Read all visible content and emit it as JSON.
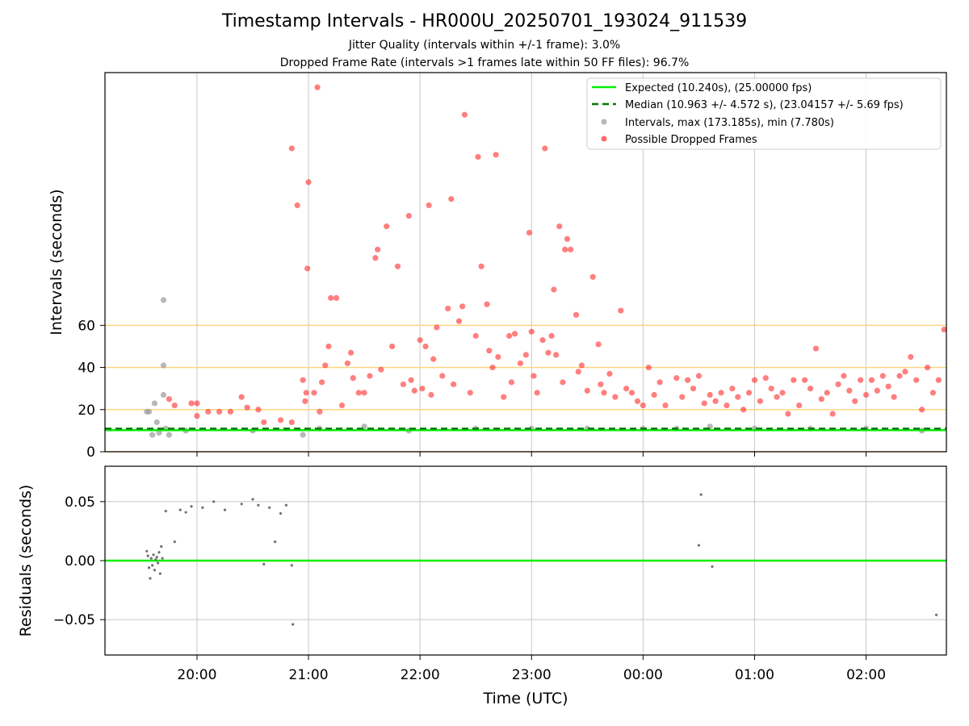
{
  "header": {
    "title": "Timestamp Intervals - HR000U_20250701_193024_911539",
    "subtitle_jitter": "Jitter Quality (intervals within +/-1 frame): 3.0%",
    "subtitle_dropped": "Dropped Frame Rate (intervals >1 frames late within 50 FF files): 96.7%"
  },
  "colors": {
    "expected": "#00ee00",
    "median": "#007700",
    "intervals": "#a0a0a0",
    "dropped": "#ff2a2a",
    "threshold": "#ffd27a",
    "residual": "#707070",
    "grid": "#c8c8c8"
  },
  "chart_data": [
    {
      "type": "scatter",
      "title": "",
      "xlabel": "",
      "ylabel": "Intervals (seconds)",
      "x_unit": "hours relative to 2025-07-01 00:00 UTC",
      "xlim": [
        19.175,
        26.72
      ],
      "ylim": [
        0,
        180
      ],
      "x_ticks": [
        20,
        21,
        22,
        23,
        24,
        25,
        26
      ],
      "x_tick_labels": [
        "20:00",
        "21:00",
        "22:00",
        "23:00",
        "00:00",
        "01:00",
        "02:00"
      ],
      "y_ticks": [
        0,
        20,
        40,
        60
      ],
      "y_tick_labels": [
        "0",
        "20",
        "40",
        "60"
      ],
      "grid": true,
      "threshold_lines": [
        0,
        20,
        40,
        60
      ],
      "expected_line": 10.24,
      "median_line": 10.963,
      "legend_position": "top-right",
      "legend": [
        {
          "label": "Expected (10.240s), (25.00000 fps)",
          "style": "solid-line",
          "color": "#00ee00"
        },
        {
          "label": "Median (10.963 +/- 4.572 s), (23.04157 +/- 5.69 fps)",
          "style": "dashed-line",
          "color": "#007700"
        },
        {
          "label": "Intervals, max (173.185s), min (7.780s)",
          "style": "marker",
          "color": "#a0a0a0"
        },
        {
          "label": "Possible Dropped Frames",
          "style": "marker",
          "color": "#ff2a2a"
        }
      ],
      "series": [
        {
          "name": "Intervals, max (173.185s), min (7.780s)",
          "points": [
            [
              19.55,
              19
            ],
            [
              19.57,
              19
            ],
            [
              19.6,
              8
            ],
            [
              19.62,
              23
            ],
            [
              19.64,
              14
            ],
            [
              19.66,
              9
            ],
            [
              19.7,
              72
            ],
            [
              19.7,
              41
            ],
            [
              19.7,
              27
            ],
            [
              19.72,
              11
            ],
            [
              19.75,
              8
            ],
            [
              19.9,
              10
            ],
            [
              20.5,
              10
            ],
            [
              20.95,
              8
            ],
            [
              21.1,
              11
            ],
            [
              21.5,
              12
            ],
            [
              21.9,
              10
            ],
            [
              22.5,
              11
            ],
            [
              23.0,
              11
            ],
            [
              23.5,
              11
            ],
            [
              24.0,
              11
            ],
            [
              24.3,
              11
            ],
            [
              24.6,
              12
            ],
            [
              25.0,
              11
            ],
            [
              25.5,
              11
            ],
            [
              26.0,
              11
            ],
            [
              26.5,
              10
            ]
          ]
        },
        {
          "name": "Possible Dropped Frames",
          "points": [
            [
              19.75,
              25
            ],
            [
              19.8,
              22
            ],
            [
              19.95,
              23
            ],
            [
              20.0,
              23
            ],
            [
              20.0,
              17
            ],
            [
              20.1,
              19
            ],
            [
              20.2,
              19
            ],
            [
              20.3,
              19
            ],
            [
              20.4,
              26
            ],
            [
              20.45,
              21
            ],
            [
              20.55,
              20
            ],
            [
              20.6,
              14
            ],
            [
              20.75,
              15
            ],
            [
              20.85,
              14
            ],
            [
              20.85,
              144
            ],
            [
              20.9,
              117
            ],
            [
              20.95,
              34
            ],
            [
              20.97,
              24
            ],
            [
              20.98,
              28
            ],
            [
              20.99,
              87
            ],
            [
              21.0,
              128
            ],
            [
              21.05,
              28
            ],
            [
              21.08,
              173
            ],
            [
              21.1,
              19
            ],
            [
              21.12,
              33
            ],
            [
              21.15,
              41
            ],
            [
              21.18,
              50
            ],
            [
              21.2,
              73
            ],
            [
              21.25,
              73
            ],
            [
              21.3,
              22
            ],
            [
              21.35,
              42
            ],
            [
              21.38,
              47
            ],
            [
              21.4,
              35
            ],
            [
              21.45,
              28
            ],
            [
              21.5,
              28
            ],
            [
              21.55,
              36
            ],
            [
              21.6,
              92
            ],
            [
              21.62,
              96
            ],
            [
              21.65,
              39
            ],
            [
              21.7,
              107
            ],
            [
              21.75,
              50
            ],
            [
              21.8,
              88
            ],
            [
              21.85,
              32
            ],
            [
              21.9,
              112
            ],
            [
              21.92,
              34
            ],
            [
              21.95,
              29
            ],
            [
              22.0,
              53
            ],
            [
              22.02,
              30
            ],
            [
              22.05,
              50
            ],
            [
              22.08,
              117
            ],
            [
              22.1,
              27
            ],
            [
              22.12,
              44
            ],
            [
              22.15,
              59
            ],
            [
              22.2,
              36
            ],
            [
              22.25,
              68
            ],
            [
              22.28,
              120
            ],
            [
              22.3,
              32
            ],
            [
              22.35,
              62
            ],
            [
              22.38,
              69
            ],
            [
              22.4,
              160
            ],
            [
              22.45,
              28
            ],
            [
              22.5,
              55
            ],
            [
              22.52,
              140
            ],
            [
              22.55,
              88
            ],
            [
              22.6,
              70
            ],
            [
              22.62,
              48
            ],
            [
              22.65,
              40
            ],
            [
              22.68,
              141
            ],
            [
              22.7,
              45
            ],
            [
              22.75,
              26
            ],
            [
              22.8,
              55
            ],
            [
              22.82,
              33
            ],
            [
              22.85,
              56
            ],
            [
              22.9,
              42
            ],
            [
              22.95,
              46
            ],
            [
              22.98,
              104
            ],
            [
              23.0,
              57
            ],
            [
              23.02,
              36
            ],
            [
              23.05,
              28
            ],
            [
              23.1,
              53
            ],
            [
              23.12,
              144
            ],
            [
              23.15,
              47
            ],
            [
              23.18,
              55
            ],
            [
              23.2,
              77
            ],
            [
              23.22,
              46
            ],
            [
              23.25,
              107
            ],
            [
              23.28,
              33
            ],
            [
              23.3,
              96
            ],
            [
              23.32,
              101
            ],
            [
              23.35,
              96
            ],
            [
              23.4,
              65
            ],
            [
              23.42,
              38
            ],
            [
              23.45,
              41
            ],
            [
              23.5,
              29
            ],
            [
              23.55,
              83
            ],
            [
              23.6,
              51
            ],
            [
              23.62,
              32
            ],
            [
              23.65,
              28
            ],
            [
              23.7,
              37
            ],
            [
              23.75,
              26
            ],
            [
              23.8,
              67
            ],
            [
              23.85,
              30
            ],
            [
              23.9,
              28
            ],
            [
              23.95,
              24
            ],
            [
              24.0,
              22
            ],
            [
              24.05,
              40
            ],
            [
              24.1,
              27
            ],
            [
              24.15,
              33
            ],
            [
              24.2,
              22
            ],
            [
              24.3,
              35
            ],
            [
              24.35,
              26
            ],
            [
              24.4,
              34
            ],
            [
              24.45,
              30
            ],
            [
              24.5,
              36
            ],
            [
              24.55,
              23
            ],
            [
              24.6,
              27
            ],
            [
              24.65,
              24
            ],
            [
              24.7,
              28
            ],
            [
              24.75,
              22
            ],
            [
              24.8,
              30
            ],
            [
              24.85,
              26
            ],
            [
              24.9,
              20
            ],
            [
              24.95,
              28
            ],
            [
              25.0,
              34
            ],
            [
              25.05,
              24
            ],
            [
              25.1,
              35
            ],
            [
              25.15,
              30
            ],
            [
              25.2,
              26
            ],
            [
              25.25,
              28
            ],
            [
              25.3,
              18
            ],
            [
              25.35,
              34
            ],
            [
              25.4,
              22
            ],
            [
              25.45,
              34
            ],
            [
              25.5,
              30
            ],
            [
              25.55,
              49
            ],
            [
              25.6,
              25
            ],
            [
              25.65,
              28
            ],
            [
              25.7,
              18
            ],
            [
              25.75,
              32
            ],
            [
              25.8,
              36
            ],
            [
              25.85,
              29
            ],
            [
              25.9,
              24
            ],
            [
              25.95,
              34
            ],
            [
              26.0,
              27
            ],
            [
              26.05,
              34
            ],
            [
              26.1,
              29
            ],
            [
              26.15,
              36
            ],
            [
              26.2,
              31
            ],
            [
              26.25,
              26
            ],
            [
              26.3,
              36
            ],
            [
              26.35,
              38
            ],
            [
              26.4,
              45
            ],
            [
              26.45,
              34
            ],
            [
              26.5,
              20
            ],
            [
              26.55,
              40
            ],
            [
              26.6,
              28
            ],
            [
              26.65,
              34
            ],
            [
              26.7,
              58
            ]
          ]
        }
      ]
    },
    {
      "type": "scatter",
      "title": "",
      "xlabel": "Time (UTC)",
      "ylabel": "Residuals (seconds)",
      "xlim": [
        19.175,
        26.72
      ],
      "ylim": [
        -0.08,
        0.08
      ],
      "y_ticks": [
        -0.05,
        0.0,
        0.05
      ],
      "y_tick_labels": [
        "−0.05",
        "0.00",
        "0.05"
      ],
      "grid": true,
      "zero_line": 0.0,
      "series": [
        {
          "name": "Residuals",
          "points": [
            [
              19.55,
              0.008
            ],
            [
              19.56,
              0.004
            ],
            [
              19.57,
              -0.006
            ],
            [
              19.58,
              -0.015
            ],
            [
              19.59,
              0.002
            ],
            [
              19.6,
              -0.004
            ],
            [
              19.61,
              0.005
            ],
            [
              19.62,
              -0.008
            ],
            [
              19.63,
              0.001
            ],
            [
              19.64,
              0.003
            ],
            [
              19.65,
              -0.002
            ],
            [
              19.66,
              0.007
            ],
            [
              19.67,
              -0.011
            ],
            [
              19.68,
              0.012
            ],
            [
              19.69,
              0.002
            ],
            [
              19.72,
              0.042
            ],
            [
              19.8,
              0.016
            ],
            [
              19.85,
              0.043
            ],
            [
              19.9,
              0.041
            ],
            [
              19.95,
              0.046
            ],
            [
              20.05,
              0.045
            ],
            [
              20.15,
              0.05
            ],
            [
              20.25,
              0.043
            ],
            [
              20.4,
              0.048
            ],
            [
              20.5,
              0.052
            ],
            [
              20.55,
              0.047
            ],
            [
              20.6,
              -0.003
            ],
            [
              20.65,
              0.045
            ],
            [
              20.7,
              0.016
            ],
            [
              20.75,
              0.04
            ],
            [
              20.8,
              0.047
            ],
            [
              20.85,
              -0.004
            ],
            [
              20.86,
              -0.054
            ],
            [
              24.5,
              0.013
            ],
            [
              24.52,
              0.056
            ],
            [
              24.62,
              -0.005
            ],
            [
              26.63,
              -0.046
            ]
          ]
        }
      ]
    }
  ]
}
